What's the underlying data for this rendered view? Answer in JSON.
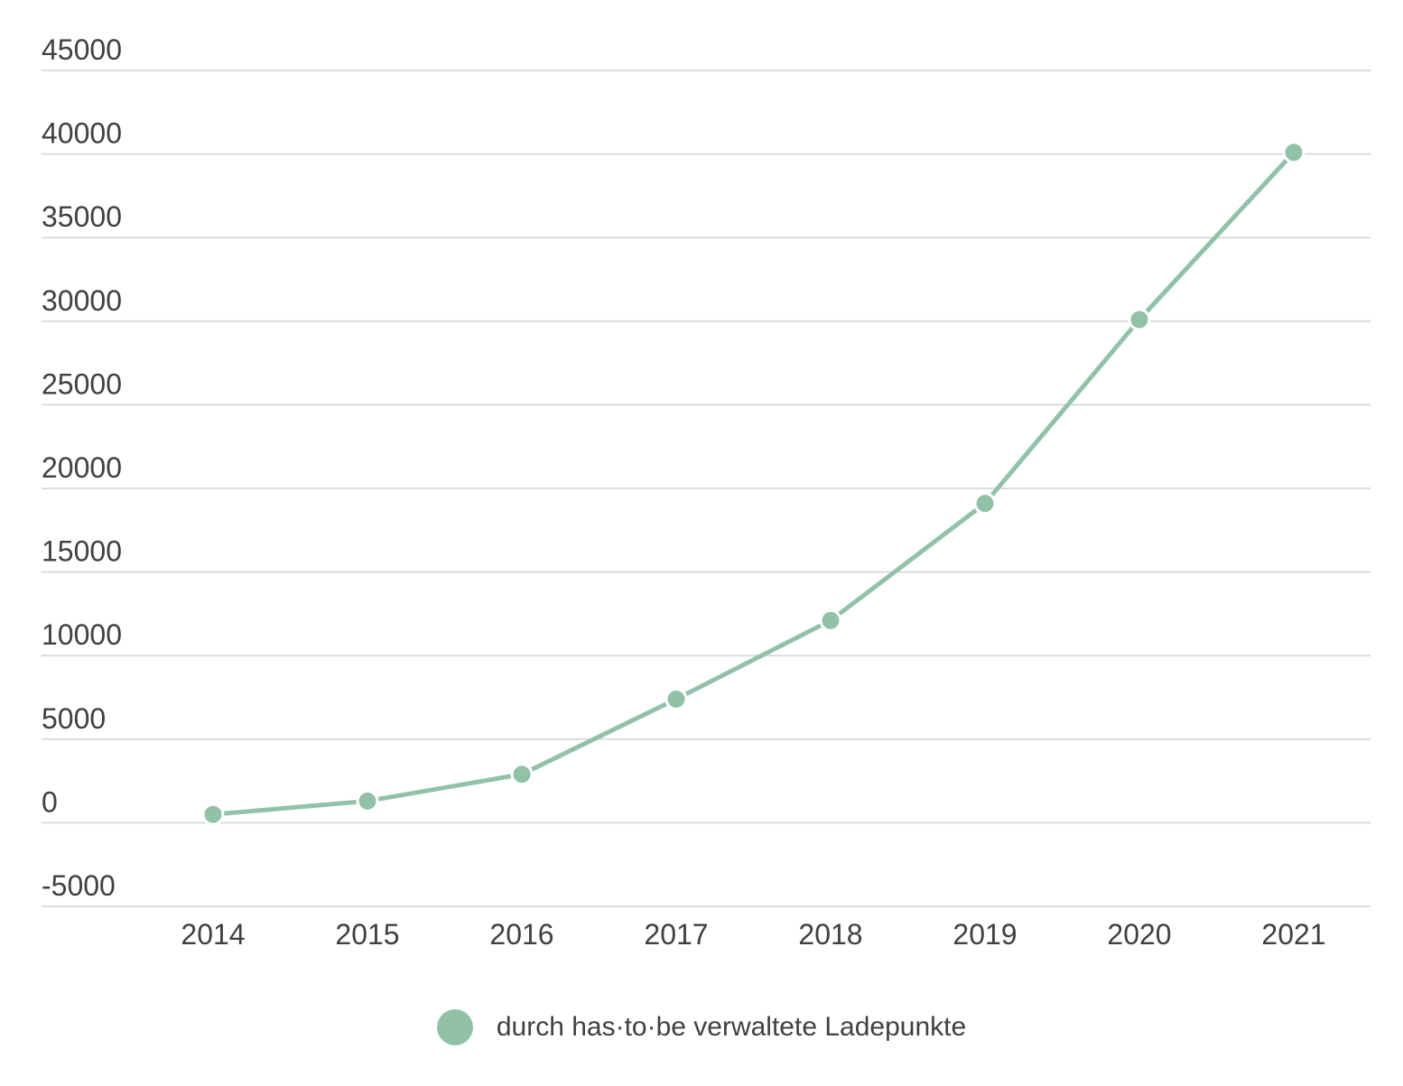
{
  "chart_data": {
    "type": "line",
    "x": [
      "2014",
      "2015",
      "2016",
      "2017",
      "2018",
      "2019",
      "2020",
      "2021"
    ],
    "series": [
      {
        "name": "durch has·to·be verwaltete Ladepunkte",
        "values": [
          500,
          1300,
          2900,
          7400,
          12100,
          19100,
          30100,
          40100
        ]
      }
    ],
    "ylim": [
      -5000,
      45000
    ],
    "yticks": [
      45000,
      40000,
      35000,
      30000,
      25000,
      20000,
      15000,
      10000,
      5000,
      0,
      -5000
    ],
    "ytick_labels": [
      "45000",
      "40000",
      "35000",
      "30000",
      "25000",
      "20000",
      "15000",
      "10000",
      "5000",
      "0",
      "-5000"
    ],
    "grid": true,
    "legend_position": "bottom-center",
    "colors": {
      "series": "#91c2a8",
      "grid": "#dcdcdc",
      "text": "#404040"
    }
  }
}
